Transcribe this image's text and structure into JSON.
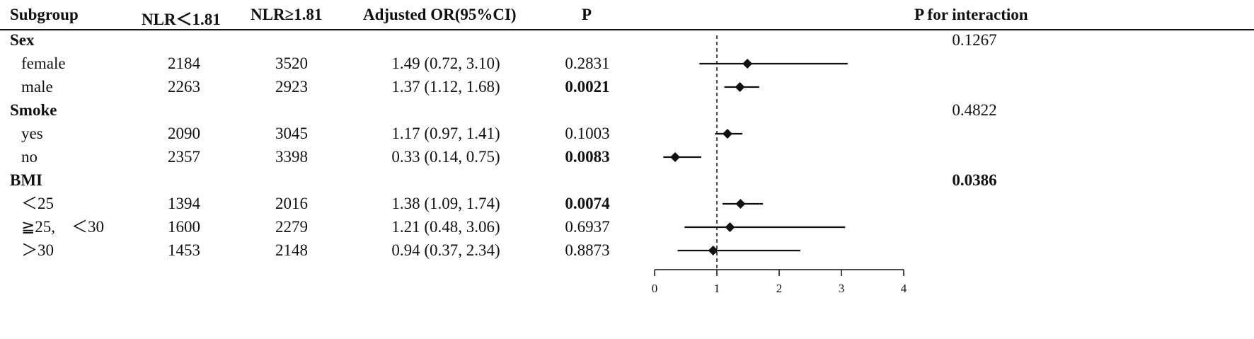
{
  "headers": {
    "subgroup": "Subgroup",
    "low": "NLR 1.81",
    "high": "NLR≥1.81",
    "or": "Adjusted  OR(95%CI)",
    "p": "P",
    "p_int": "P for interaction"
  },
  "groups": [
    {
      "label": "Sex",
      "p_interaction": "0.1267",
      "p_interaction_bold": false,
      "rows": [
        {
          "label": "female",
          "low": "2184",
          "high": "3520",
          "or_text": "1.49 (0.72, 3.10)",
          "p": "0.2831",
          "p_bold": false
        },
        {
          "label": "male",
          "low": "2263",
          "high": "2923",
          "or_text": "1.37 (1.12, 1.68)",
          "p": "0.0021",
          "p_bold": true
        }
      ]
    },
    {
      "label": "Smoke",
      "p_interaction": "0.4822",
      "p_interaction_bold": false,
      "rows": [
        {
          "label": "yes",
          "low": "2090",
          "high": "3045",
          "or_text": "1.17 (0.97, 1.41)",
          "p": "0.1003",
          "p_bold": false
        },
        {
          "label": "no",
          "low": "2357",
          "high": "3398",
          "or_text": "0.33 (0.14, 0.75)",
          "p": "0.0083",
          "p_bold": true
        }
      ]
    },
    {
      "label": "BMI",
      "p_interaction": "0.0386",
      "p_interaction_bold": true,
      "rows": [
        {
          "label": "＜25",
          "low": "1394",
          "high": "2016",
          "or_text": "1.38 (1.09, 1.74)",
          "p": "0.0074",
          "p_bold": true
        },
        {
          "label": "≧25,　＜30",
          "low": "1600",
          "high": "2279",
          "or_text": "1.21 (0.48, 3.06)",
          "p": "0.6937",
          "p_bold": false
        },
        {
          "label": "＞30",
          "low": "1453",
          "high": "2148",
          "or_text": "0.94 (0.37, 2.34)",
          "p": "0.8873",
          "p_bold": false
        }
      ]
    }
  ],
  "chart_data": {
    "type": "scatter",
    "subtype": "forest",
    "x_ticks": [
      "0",
      "1",
      "2",
      "3",
      "4"
    ],
    "xlim": [
      0,
      4
    ],
    "reference_line": 1,
    "points": [
      {
        "or": 1.49,
        "lo": 0.72,
        "hi": 3.1
      },
      {
        "or": 1.37,
        "lo": 1.12,
        "hi": 1.68
      },
      {
        "or": 1.17,
        "lo": 0.97,
        "hi": 1.41
      },
      {
        "or": 0.33,
        "lo": 0.14,
        "hi": 0.75
      },
      {
        "or": 1.38,
        "lo": 1.09,
        "hi": 1.74
      },
      {
        "or": 1.21,
        "lo": 0.48,
        "hi": 3.06
      },
      {
        "or": 0.94,
        "lo": 0.37,
        "hi": 2.34
      }
    ],
    "colors": {
      "marks": "#111111"
    }
  }
}
